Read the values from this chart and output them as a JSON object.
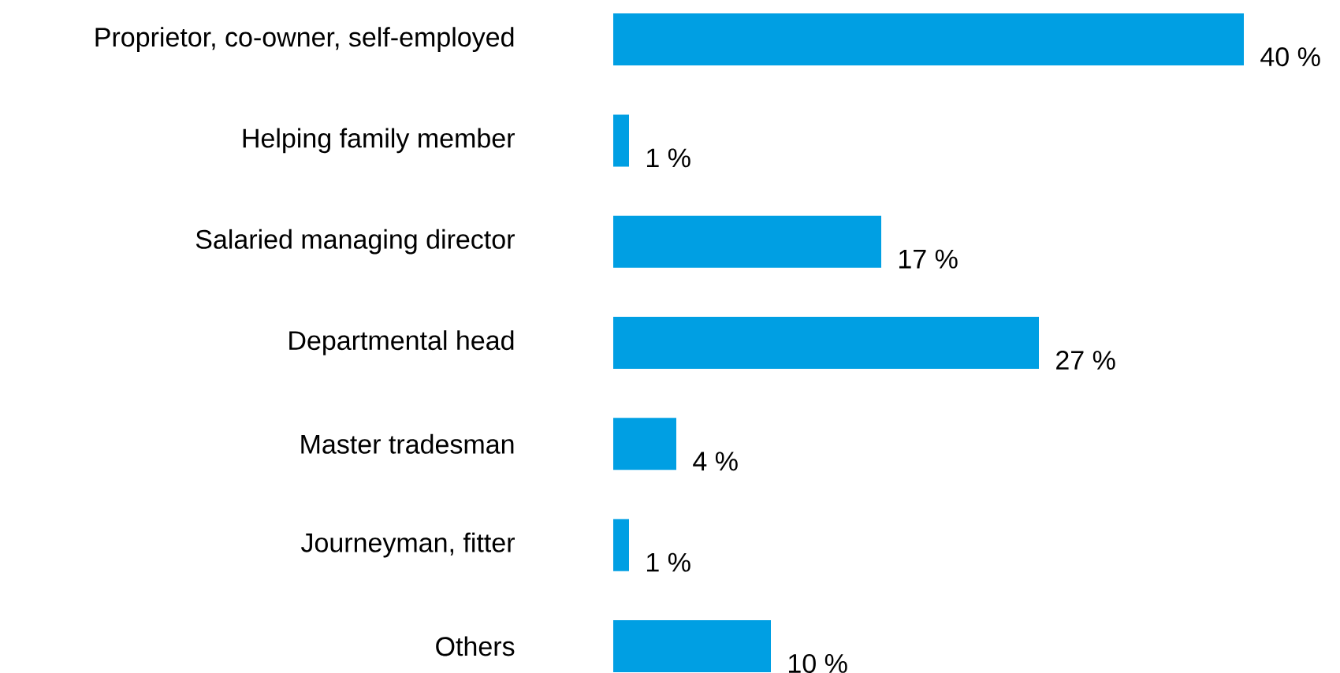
{
  "chart_data": {
    "type": "bar",
    "orientation": "horizontal",
    "color": "#009fe3",
    "categories": [
      "Proprietor, co-owner, self-employed",
      "Helping family member",
      "Salaried managing director",
      "Departmental head",
      "Master tradesman",
      "Journeyman, fitter",
      "Others"
    ],
    "values": [
      40,
      1,
      17,
      27,
      4,
      1,
      10
    ],
    "value_labels": [
      "40 %",
      "1 %",
      "17 %",
      "27 %",
      "4 %",
      "1 %",
      "10 %"
    ]
  }
}
